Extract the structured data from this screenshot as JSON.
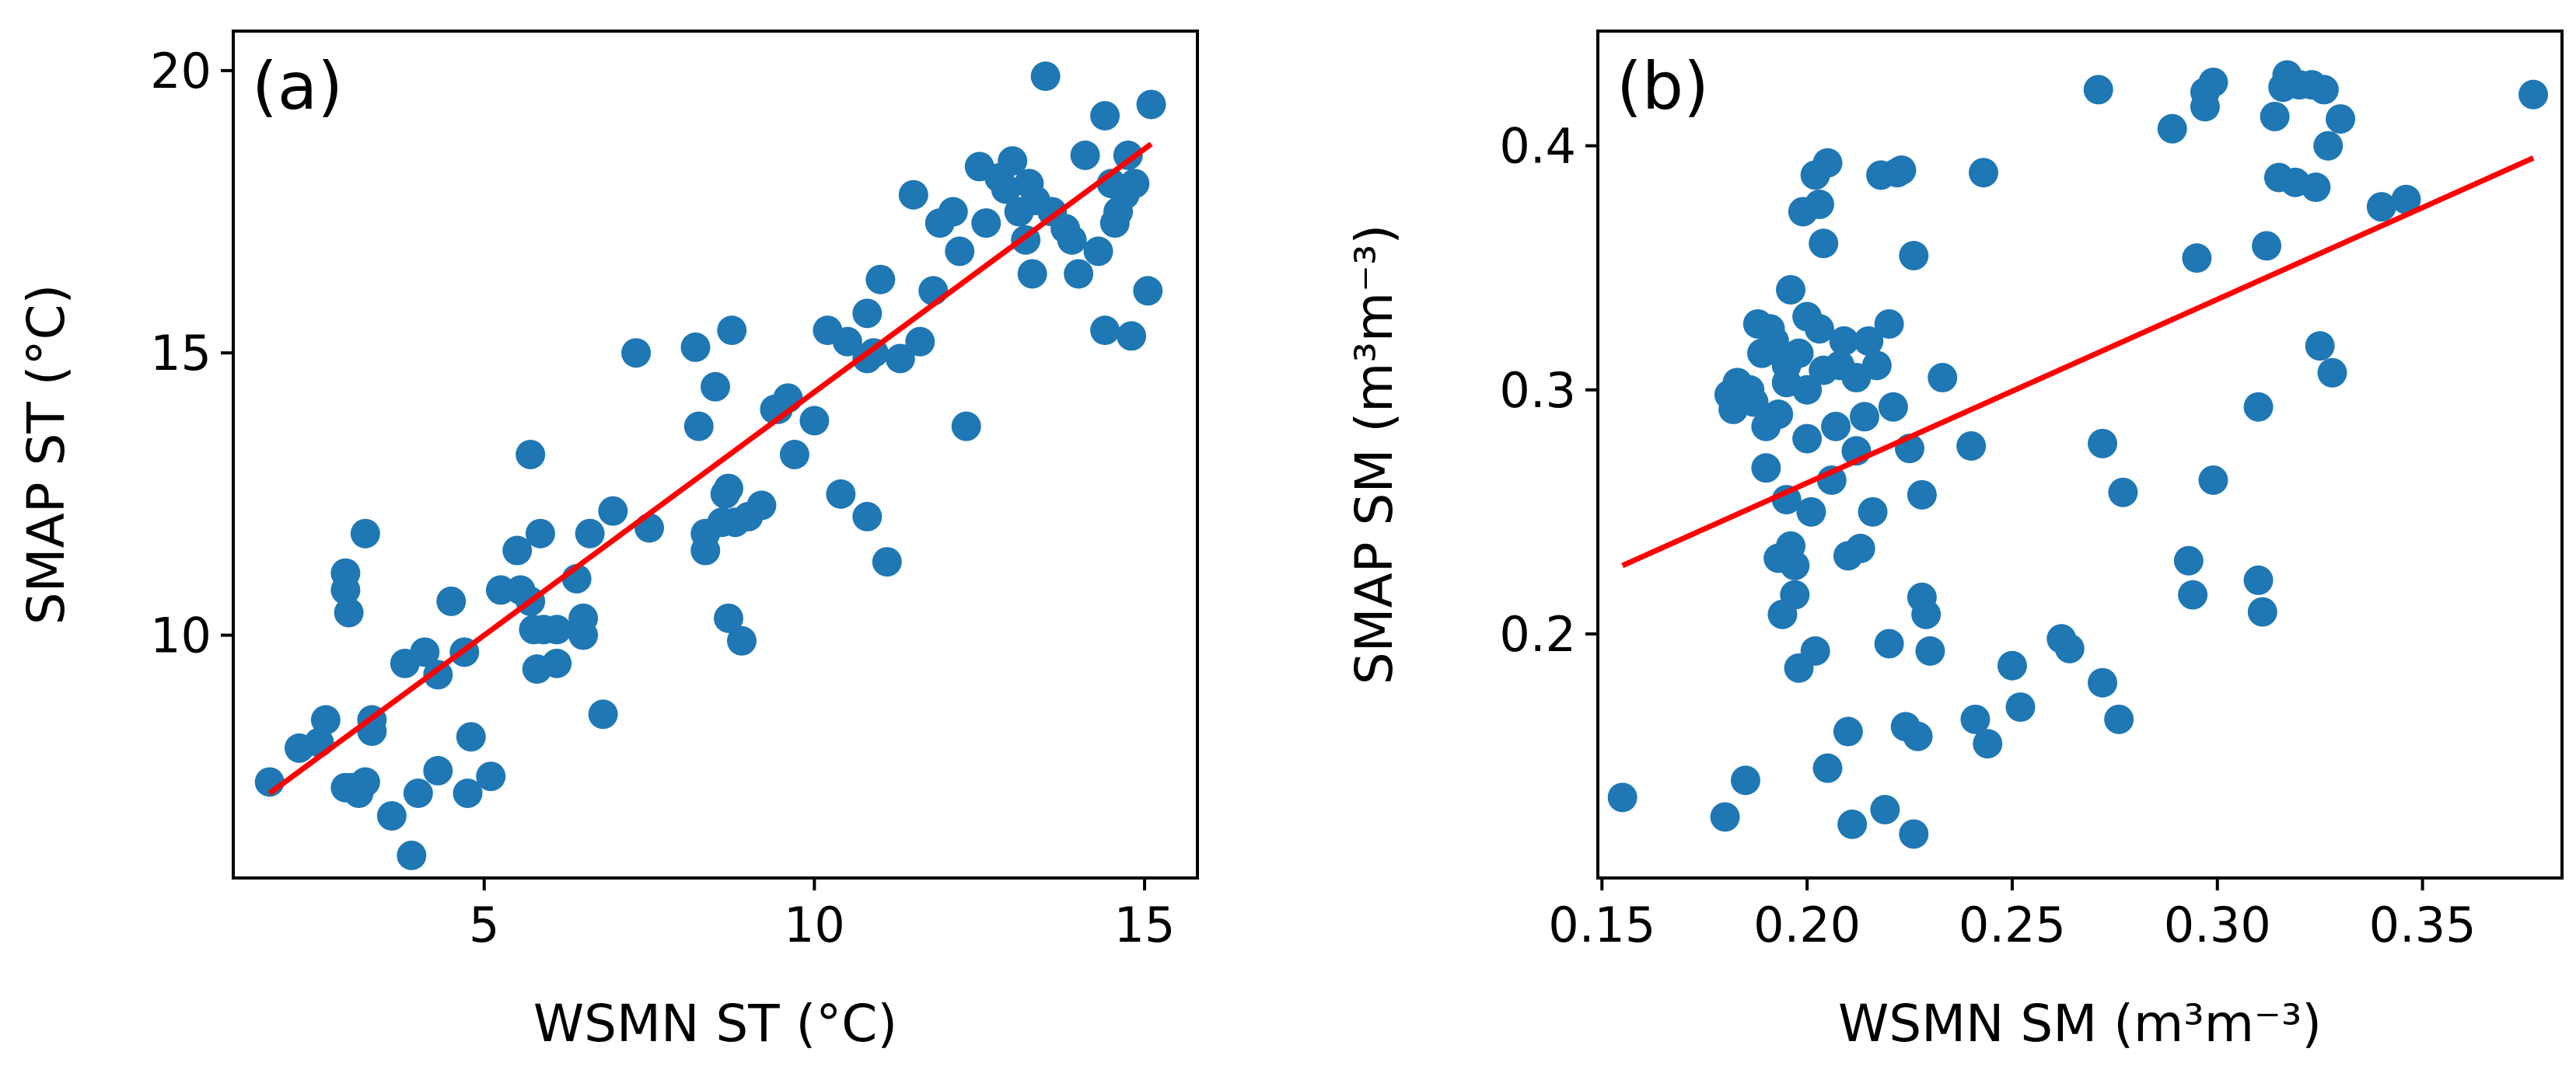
{
  "chart_data": [
    {
      "type": "scatter",
      "panel_label": "(a)",
      "xlabel": "WSMN ST (°C)",
      "ylabel": "SMAP ST (°C)",
      "xlim": [
        1.2,
        15.8
      ],
      "ylim": [
        5.7,
        20.7
      ],
      "xticks": [
        5,
        10,
        15
      ],
      "xtick_labels": [
        "5",
        "10",
        "15"
      ],
      "yticks": [
        10,
        15,
        20
      ],
      "ytick_labels": [
        "10",
        "15",
        "20"
      ],
      "grid": false,
      "legend": null,
      "marker_color": "#1f77b4",
      "line_color": "#ff0000",
      "fit_line": {
        "x": [
          1.75,
          15.1
        ],
        "y": [
          7.2,
          18.7
        ]
      },
      "points": {
        "x": [
          1.75,
          2.2,
          2.5,
          2.6,
          2.9,
          2.9,
          2.9,
          2.95,
          3.0,
          3.1,
          3.2,
          3.2,
          3.3,
          3.3,
          3.6,
          3.8,
          3.9,
          4.0,
          4.1,
          4.3,
          4.3,
          4.5,
          4.7,
          4.75,
          4.8,
          5.1,
          5.25,
          5.5,
          5.55,
          5.7,
          5.7,
          5.75,
          5.8,
          5.85,
          5.9,
          6.1,
          6.1,
          6.4,
          6.5,
          6.5,
          6.6,
          6.8,
          6.95,
          7.3,
          7.5,
          8.2,
          8.25,
          8.35,
          8.35,
          8.5,
          8.6,
          8.65,
          8.7,
          8.7,
          8.75,
          8.8,
          8.9,
          9.0,
          9.2,
          9.4,
          9.45,
          9.6,
          9.7,
          10.0,
          10.2,
          10.4,
          10.5,
          10.8,
          10.8,
          10.8,
          10.9,
          11.1,
          11.0,
          11.3,
          11.5,
          11.6,
          11.8,
          11.9,
          12.1,
          12.2,
          12.3,
          12.5,
          12.6,
          12.8,
          12.9,
          13.0,
          13.1,
          13.2,
          13.25,
          13.3,
          13.35,
          13.5,
          13.6,
          13.8,
          13.9,
          14.0,
          14.1,
          14.3,
          14.4,
          14.4,
          14.5,
          14.55,
          14.6,
          14.7,
          14.75,
          14.8,
          14.85,
          15.05,
          15.1
        ],
        "y": [
          7.4,
          8.0,
          8.1,
          8.5,
          7.3,
          11.1,
          10.8,
          10.4,
          7.3,
          7.2,
          7.4,
          11.8,
          8.3,
          8.5,
          6.8,
          9.5,
          6.1,
          7.2,
          9.7,
          9.3,
          7.6,
          10.6,
          9.7,
          7.2,
          8.2,
          7.5,
          10.8,
          11.5,
          10.8,
          13.2,
          10.6,
          10.1,
          9.4,
          11.8,
          10.1,
          9.5,
          10.1,
          11.0,
          10.0,
          10.3,
          11.8,
          8.6,
          12.2,
          15.0,
          11.9,
          15.1,
          13.7,
          11.8,
          11.5,
          14.4,
          12.0,
          12.5,
          12.6,
          10.3,
          15.4,
          12.0,
          9.9,
          12.1,
          12.3,
          14.0,
          14.0,
          14.2,
          13.2,
          13.8,
          15.4,
          12.5,
          15.2,
          14.9,
          15.7,
          12.1,
          15.0,
          11.3,
          16.3,
          14.9,
          17.8,
          15.2,
          16.1,
          17.3,
          17.5,
          16.8,
          13.7,
          18.3,
          17.3,
          18.1,
          17.9,
          18.4,
          17.5,
          17.0,
          18.0,
          16.4,
          17.7,
          19.9,
          17.5,
          17.2,
          17.0,
          16.4,
          18.5,
          16.8,
          15.4,
          19.2,
          18.0,
          17.3,
          17.5,
          17.8,
          18.5,
          15.3,
          18.0,
          16.1,
          19.4
        ]
      }
    },
    {
      "type": "scatter",
      "panel_label": "(b)",
      "xlabel": "WSMN SM (m³m⁻³)",
      "ylabel": "SMAP SM (m³m⁻³)",
      "xlim": [
        0.149,
        0.384
      ],
      "ylim": [
        0.1,
        0.447
      ],
      "xticks": [
        0.15,
        0.2,
        0.25,
        0.3,
        0.35
      ],
      "xtick_labels": [
        "0.15",
        "0.20",
        "0.25",
        "0.30",
        "0.35"
      ],
      "yticks": [
        0.2,
        0.3,
        0.4
      ],
      "ytick_labels": [
        "0.2",
        "0.3",
        "0.4"
      ],
      "grid": false,
      "legend": null,
      "marker_color": "#1f77b4",
      "line_color": "#ff0000",
      "fit_line": {
        "x": [
          0.155,
          0.377
        ],
        "y": [
          0.228,
          0.395
        ]
      },
      "points": {
        "x": [
          0.155,
          0.18,
          0.181,
          0.182,
          0.183,
          0.185,
          0.186,
          0.187,
          0.188,
          0.189,
          0.19,
          0.19,
          0.191,
          0.192,
          0.193,
          0.193,
          0.194,
          0.195,
          0.195,
          0.195,
          0.196,
          0.196,
          0.197,
          0.197,
          0.198,
          0.198,
          0.199,
          0.2,
          0.2,
          0.2,
          0.201,
          0.202,
          0.202,
          0.203,
          0.203,
          0.204,
          0.204,
          0.205,
          0.205,
          0.206,
          0.207,
          0.208,
          0.209,
          0.21,
          0.21,
          0.211,
          0.212,
          0.212,
          0.213,
          0.214,
          0.215,
          0.216,
          0.217,
          0.218,
          0.219,
          0.22,
          0.22,
          0.221,
          0.222,
          0.223,
          0.224,
          0.225,
          0.226,
          0.226,
          0.227,
          0.228,
          0.228,
          0.229,
          0.23,
          0.233,
          0.24,
          0.241,
          0.243,
          0.244,
          0.25,
          0.252,
          0.262,
          0.264,
          0.271,
          0.272,
          0.272,
          0.276,
          0.277,
          0.289,
          0.293,
          0.294,
          0.295,
          0.297,
          0.297,
          0.299,
          0.299,
          0.31,
          0.31,
          0.311,
          0.312,
          0.314,
          0.315,
          0.316,
          0.317,
          0.319,
          0.32,
          0.323,
          0.324,
          0.325,
          0.326,
          0.327,
          0.328,
          0.33,
          0.34,
          0.346,
          0.377
        ],
        "y": [
          0.133,
          0.125,
          0.298,
          0.292,
          0.303,
          0.14,
          0.3,
          0.295,
          0.327,
          0.315,
          0.268,
          0.285,
          0.325,
          0.32,
          0.231,
          0.29,
          0.208,
          0.303,
          0.255,
          0.31,
          0.341,
          0.236,
          0.228,
          0.216,
          0.186,
          0.315,
          0.373,
          0.33,
          0.3,
          0.28,
          0.25,
          0.388,
          0.193,
          0.376,
          0.325,
          0.308,
          0.36,
          0.145,
          0.393,
          0.263,
          0.285,
          0.31,
          0.32,
          0.232,
          0.16,
          0.122,
          0.305,
          0.275,
          0.235,
          0.289,
          0.32,
          0.25,
          0.31,
          0.388,
          0.128,
          0.196,
          0.327,
          0.293,
          0.389,
          0.39,
          0.162,
          0.276,
          0.118,
          0.355,
          0.158,
          0.257,
          0.215,
          0.208,
          0.193,
          0.305,
          0.277,
          0.165,
          0.389,
          0.155,
          0.187,
          0.17,
          0.198,
          0.194,
          0.423,
          0.18,
          0.278,
          0.165,
          0.258,
          0.407,
          0.23,
          0.216,
          0.354,
          0.416,
          0.422,
          0.426,
          0.263,
          0.222,
          0.293,
          0.209,
          0.359,
          0.412,
          0.387,
          0.424,
          0.429,
          0.385,
          0.425,
          0.425,
          0.383,
          0.318,
          0.423,
          0.4,
          0.307,
          0.411,
          0.375,
          0.378,
          0.421
        ]
      }
    }
  ]
}
